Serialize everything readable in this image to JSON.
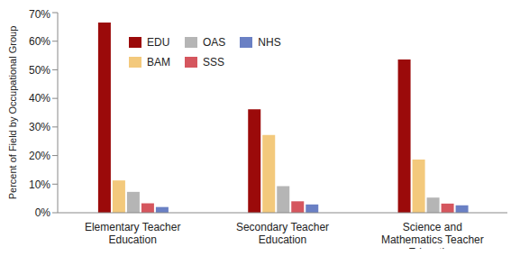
{
  "chart_data": {
    "type": "bar",
    "y_label": "Percent of Field by Occupational Group",
    "categories": [
      "Elementary Teacher Education",
      "Secondary Teacher Education",
      "Science and Mathematics Teacher Education"
    ],
    "series": [
      {
        "name": "EDU",
        "color": "#9b0a0a",
        "values": [
          66.5,
          36.2,
          53.6
        ]
      },
      {
        "name": "BAM",
        "color": "#f3c97c",
        "values": [
          11.3,
          27.2,
          18.6
        ]
      },
      {
        "name": "OAS",
        "color": "#b5b5b5",
        "values": [
          7.3,
          9.3,
          5.3
        ]
      },
      {
        "name": "SSS",
        "color": "#d5565e",
        "values": [
          3.3,
          4.0,
          3.2
        ]
      },
      {
        "name": "NHS",
        "color": "#6a80c4",
        "values": [
          2.0,
          2.9,
          2.6
        ]
      }
    ],
    "ylim": [
      0,
      70
    ],
    "yticks": [
      {
        "value": 0,
        "label": "0%"
      },
      {
        "value": 10,
        "label": "10%"
      },
      {
        "value": 20,
        "label": "20%"
      },
      {
        "value": 30,
        "label": "30%"
      },
      {
        "value": 40,
        "label": "40%"
      },
      {
        "value": 50,
        "label": "50%"
      },
      {
        "value": 60,
        "label": "60%"
      },
      {
        "value": 70,
        "label": "70%"
      }
    ],
    "grid": false,
    "legend": "upper left"
  }
}
